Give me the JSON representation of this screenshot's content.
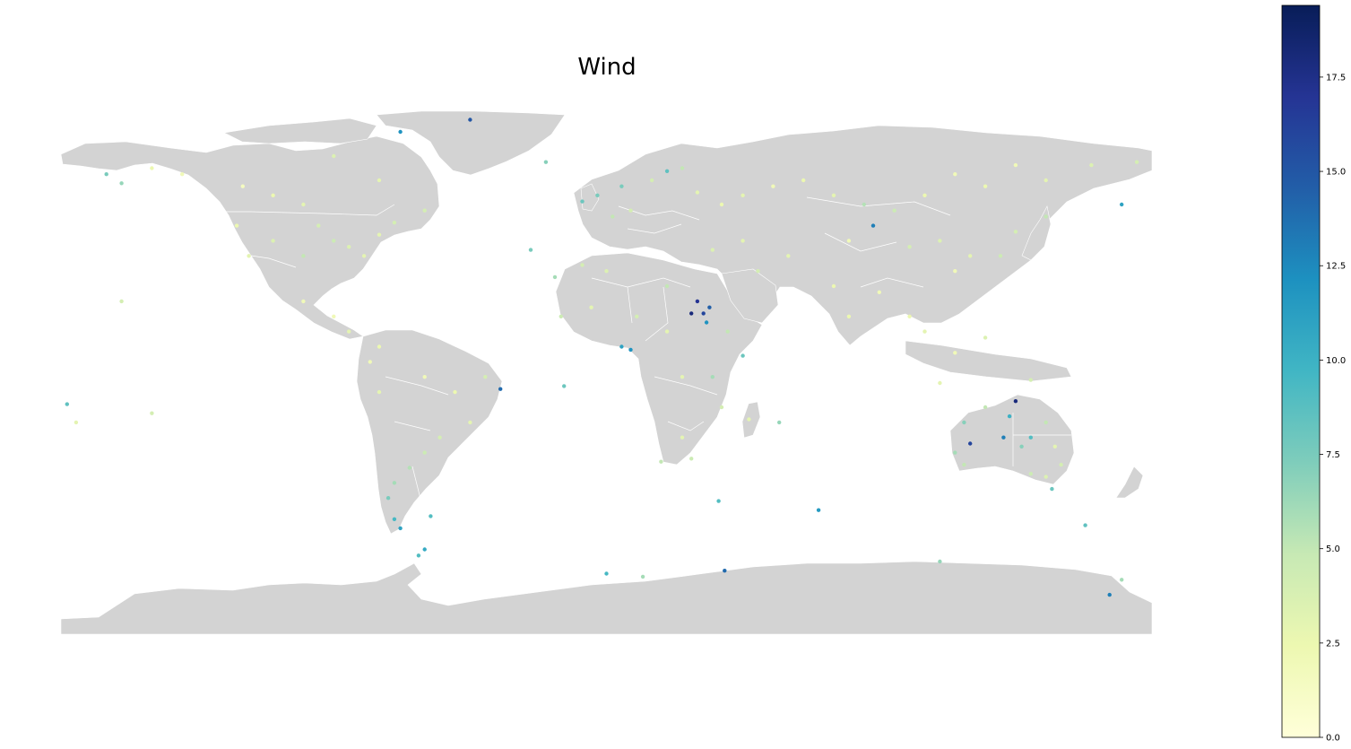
{
  "title": "Wind",
  "colorbar": {
    "min": 0.0,
    "max": 19.4,
    "ticks": [
      "0.0",
      "2.5",
      "5.0",
      "7.5",
      "10.0",
      "12.5",
      "15.0",
      "17.5"
    ],
    "tick_values": [
      0,
      2.5,
      5,
      7.5,
      10,
      12.5,
      15,
      17.5
    ],
    "colormap": "YlGnBu",
    "stops": [
      "#ffffd9",
      "#edf8b1",
      "#c7e9b4",
      "#7fcdbb",
      "#41b6c4",
      "#1d91c0",
      "#225ea8",
      "#253494",
      "#081d58"
    ]
  },
  "colors": {
    "land": "#d3d3d3",
    "borders": "#ffffff",
    "ocean": "#ffffff"
  },
  "chart_data": {
    "type": "scatter",
    "title": "Wind",
    "projection": "equirectangular",
    "value_range": [
      0,
      19.4
    ],
    "points": [
      {
        "lon": -150,
        "lat": 64,
        "v": 2.5
      },
      {
        "lon": -165,
        "lat": 62,
        "v": 7.5
      },
      {
        "lon": -160,
        "lat": 59,
        "v": 6.5
      },
      {
        "lon": -140,
        "lat": 62,
        "v": 2.0
      },
      {
        "lon": -120,
        "lat": 58,
        "v": 1.5
      },
      {
        "lon": -110,
        "lat": 55,
        "v": 2.5
      },
      {
        "lon": -100,
        "lat": 52,
        "v": 3.0
      },
      {
        "lon": -95,
        "lat": 45,
        "v": 4.0
      },
      {
        "lon": -90,
        "lat": 40,
        "v": 4.5
      },
      {
        "lon": -85,
        "lat": 38,
        "v": 3.5
      },
      {
        "lon": -80,
        "lat": 35,
        "v": 3.0
      },
      {
        "lon": -100,
        "lat": 35,
        "v": 5.0
      },
      {
        "lon": -110,
        "lat": 40,
        "v": 3.5
      },
      {
        "lon": -118,
        "lat": 35,
        "v": 3.0
      },
      {
        "lon": -122,
        "lat": 45,
        "v": 2.5
      },
      {
        "lon": -75,
        "lat": 42,
        "v": 3.0
      },
      {
        "lon": -70,
        "lat": 46,
        "v": 4.0
      },
      {
        "lon": -100,
        "lat": 20,
        "v": 2.0
      },
      {
        "lon": -90,
        "lat": 15,
        "v": 2.0
      },
      {
        "lon": -60,
        "lat": 50,
        "v": 4.0
      },
      {
        "lon": -75,
        "lat": 60,
        "v": 3.0
      },
      {
        "lon": -90,
        "lat": 68,
        "v": 3.5
      },
      {
        "lon": -68,
        "lat": 76,
        "v": 12.0
      },
      {
        "lon": -45,
        "lat": 80,
        "v": 15.0
      },
      {
        "lon": -20,
        "lat": 66,
        "v": 7.0
      },
      {
        "lon": -8,
        "lat": 53,
        "v": 8.0
      },
      {
        "lon": -3,
        "lat": 55,
        "v": 7.5
      },
      {
        "lon": 2,
        "lat": 48,
        "v": 5.0
      },
      {
        "lon": 8,
        "lat": 50,
        "v": 4.0
      },
      {
        "lon": 5,
        "lat": 58,
        "v": 7.5
      },
      {
        "lon": 15,
        "lat": 60,
        "v": 4.0
      },
      {
        "lon": 20,
        "lat": 63,
        "v": 8.5
      },
      {
        "lon": 25,
        "lat": 64,
        "v": 5.0
      },
      {
        "lon": 30,
        "lat": 56,
        "v": 3.0
      },
      {
        "lon": 38,
        "lat": 52,
        "v": 2.5
      },
      {
        "lon": 45,
        "lat": 55,
        "v": 3.0
      },
      {
        "lon": 55,
        "lat": 58,
        "v": 2.0
      },
      {
        "lon": 65,
        "lat": 60,
        "v": 2.5
      },
      {
        "lon": 75,
        "lat": 55,
        "v": 3.0
      },
      {
        "lon": 85,
        "lat": 52,
        "v": 5.5
      },
      {
        "lon": 95,
        "lat": 50,
        "v": 4.5
      },
      {
        "lon": 105,
        "lat": 55,
        "v": 2.5
      },
      {
        "lon": 115,
        "lat": 62,
        "v": 2.0
      },
      {
        "lon": 125,
        "lat": 58,
        "v": 2.5
      },
      {
        "lon": 135,
        "lat": 65,
        "v": 2.0
      },
      {
        "lon": 145,
        "lat": 60,
        "v": 3.0
      },
      {
        "lon": 160,
        "lat": 65,
        "v": 3.5
      },
      {
        "lon": 175,
        "lat": 66,
        "v": 4.0
      },
      {
        "lon": 170,
        "lat": 52,
        "v": 11.0
      },
      {
        "lon": 145,
        "lat": 48,
        "v": 5.0
      },
      {
        "lon": 135,
        "lat": 43,
        "v": 4.0
      },
      {
        "lon": 130,
        "lat": 35,
        "v": 4.5
      },
      {
        "lon": 120,
        "lat": 35,
        "v": 3.0
      },
      {
        "lon": 115,
        "lat": 30,
        "v": 2.0
      },
      {
        "lon": 110,
        "lat": 40,
        "v": 3.5
      },
      {
        "lon": 100,
        "lat": 38,
        "v": 4.0
      },
      {
        "lon": 88,
        "lat": 45,
        "v": 13.0
      },
      {
        "lon": 80,
        "lat": 40,
        "v": 2.0
      },
      {
        "lon": 75,
        "lat": 25,
        "v": 2.5
      },
      {
        "lon": 80,
        "lat": 15,
        "v": 2.5
      },
      {
        "lon": 90,
        "lat": 23,
        "v": 2.0
      },
      {
        "lon": 100,
        "lat": 15,
        "v": 2.5
      },
      {
        "lon": 105,
        "lat": 10,
        "v": 3.0
      },
      {
        "lon": 115,
        "lat": 3,
        "v": 2.0
      },
      {
        "lon": 110,
        "lat": -7,
        "v": 3.0
      },
      {
        "lon": 125,
        "lat": 8,
        "v": 3.5
      },
      {
        "lon": 140,
        "lat": -6,
        "v": 4.0
      },
      {
        "lon": 60,
        "lat": 35,
        "v": 3.0
      },
      {
        "lon": 50,
        "lat": 30,
        "v": 4.0
      },
      {
        "lon": 45,
        "lat": 40,
        "v": 3.0
      },
      {
        "lon": 35,
        "lat": 37,
        "v": 3.5
      },
      {
        "lon": 30,
        "lat": 20,
        "v": 17.0
      },
      {
        "lon": 32,
        "lat": 16,
        "v": 16.0
      },
      {
        "lon": 34,
        "lat": 18,
        "v": 14.5
      },
      {
        "lon": 33,
        "lat": 13,
        "v": 12.0
      },
      {
        "lon": 28,
        "lat": 16,
        "v": 18.0
      },
      {
        "lon": 40,
        "lat": 10,
        "v": 5.0
      },
      {
        "lon": 45,
        "lat": 2,
        "v": 8.0
      },
      {
        "lon": 20,
        "lat": 10,
        "v": 3.0
      },
      {
        "lon": 10,
        "lat": 15,
        "v": 4.0
      },
      {
        "lon": -5,
        "lat": 18,
        "v": 3.0
      },
      {
        "lon": -15,
        "lat": 15,
        "v": 4.5
      },
      {
        "lon": 5,
        "lat": 5,
        "v": 11.0
      },
      {
        "lon": 8,
        "lat": 4,
        "v": 12.0
      },
      {
        "lon": 0,
        "lat": 30,
        "v": 3.5
      },
      {
        "lon": -8,
        "lat": 32,
        "v": 4.0
      },
      {
        "lon": 20,
        "lat": 25,
        "v": 5.0
      },
      {
        "lon": 25,
        "lat": -5,
        "v": 3.0
      },
      {
        "lon": 35,
        "lat": -5,
        "v": 6.0
      },
      {
        "lon": 38,
        "lat": -15,
        "v": 4.0
      },
      {
        "lon": 25,
        "lat": -25,
        "v": 3.0
      },
      {
        "lon": 28,
        "lat": -32,
        "v": 4.5
      },
      {
        "lon": 18,
        "lat": -33,
        "v": 5.0
      },
      {
        "lon": 47,
        "lat": -19,
        "v": 3.0
      },
      {
        "lon": 57,
        "lat": -20,
        "v": 6.5
      },
      {
        "lon": -60,
        "lat": -5,
        "v": 2.0
      },
      {
        "lon": -50,
        "lat": -10,
        "v": 2.5
      },
      {
        "lon": -40,
        "lat": -5,
        "v": 4.0
      },
      {
        "lon": -35,
        "lat": -9,
        "v": 14.0
      },
      {
        "lon": -45,
        "lat": -20,
        "v": 3.0
      },
      {
        "lon": -55,
        "lat": -25,
        "v": 4.0
      },
      {
        "lon": -60,
        "lat": -30,
        "v": 4.5
      },
      {
        "lon": -65,
        "lat": -35,
        "v": 5.5
      },
      {
        "lon": -70,
        "lat": -40,
        "v": 6.0
      },
      {
        "lon": -72,
        "lat": -45,
        "v": 7.5
      },
      {
        "lon": -70,
        "lat": -52,
        "v": 9.5
      },
      {
        "lon": -68,
        "lat": -55,
        "v": 11.0
      },
      {
        "lon": -58,
        "lat": -51,
        "v": 9.0
      },
      {
        "lon": -75,
        "lat": -10,
        "v": 3.0
      },
      {
        "lon": -78,
        "lat": 0,
        "v": 2.0
      },
      {
        "lon": -75,
        "lat": 5,
        "v": 2.5
      },
      {
        "lon": -85,
        "lat": 10,
        "v": 3.0
      },
      {
        "lon": -178,
        "lat": -14,
        "v": 8.5
      },
      {
        "lon": -150,
        "lat": -17,
        "v": 4.0
      },
      {
        "lon": 115,
        "lat": -30,
        "v": 6.0
      },
      {
        "lon": 118,
        "lat": -20,
        "v": 7.0
      },
      {
        "lon": 125,
        "lat": -15,
        "v": 5.0
      },
      {
        "lon": 131,
        "lat": -25,
        "v": 13.0
      },
      {
        "lon": 133,
        "lat": -18,
        "v": 10.0
      },
      {
        "lon": 135,
        "lat": -13,
        "v": 18.0
      },
      {
        "lon": 137,
        "lat": -28,
        "v": 7.0
      },
      {
        "lon": 140,
        "lat": -25,
        "v": 9.0
      },
      {
        "lon": 145,
        "lat": -20,
        "v": 5.0
      },
      {
        "lon": 148,
        "lat": -28,
        "v": 3.0
      },
      {
        "lon": 150,
        "lat": -34,
        "v": 4.0
      },
      {
        "lon": 145,
        "lat": -38,
        "v": 3.5
      },
      {
        "lon": 140,
        "lat": -37,
        "v": 4.5
      },
      {
        "lon": 118,
        "lat": -34,
        "v": 5.0
      },
      {
        "lon": 120,
        "lat": -27,
        "v": 16.0
      },
      {
        "lon": 147,
        "lat": -42,
        "v": 8.0
      },
      {
        "lon": 70,
        "lat": -49,
        "v": 11.5
      },
      {
        "lon": 37,
        "lat": -46,
        "v": 9.0
      },
      {
        "lon": 158,
        "lat": -54,
        "v": 8.5
      },
      {
        "lon": -60,
        "lat": -62,
        "v": 10.5
      },
      {
        "lon": -62,
        "lat": -64,
        "v": 9.0
      },
      {
        "lon": 0,
        "lat": -70,
        "v": 9.5
      },
      {
        "lon": 39,
        "lat": -69,
        "v": 14.0
      },
      {
        "lon": 12,
        "lat": -71,
        "v": 6.0
      },
      {
        "lon": 110,
        "lat": -66,
        "v": 6.5
      },
      {
        "lon": 166,
        "lat": -77,
        "v": 13.0
      },
      {
        "lon": 170,
        "lat": -72,
        "v": 6.0
      },
      {
        "lon": -14,
        "lat": -8,
        "v": 8.0
      },
      {
        "lon": -25,
        "lat": 37,
        "v": 7.5
      },
      {
        "lon": -17,
        "lat": 28,
        "v": 6.0
      },
      {
        "lon": -160,
        "lat": 20,
        "v": 4.0
      },
      {
        "lon": -175,
        "lat": -20,
        "v": 3.0
      }
    ]
  }
}
